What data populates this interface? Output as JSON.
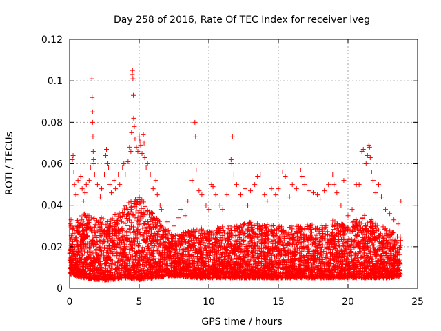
{
  "chart_data": {
    "type": "scatter",
    "title": "Day 258 of 2016, Rate Of TEC Index for receiver lveg",
    "xlabel": "GPS time / hours",
    "ylabel": "ROTI / TECUs",
    "xlim": [
      0,
      25
    ],
    "ylim": [
      0,
      0.12
    ],
    "x_ticks": [
      0,
      5,
      10,
      15,
      20,
      25
    ],
    "x_tick_labels": [
      "0",
      "5",
      "10",
      "15",
      "20",
      "25"
    ],
    "y_ticks": [
      0,
      0.02,
      0.04,
      0.06,
      0.08,
      0.1,
      0.12
    ],
    "y_tick_labels": [
      "0",
      "0.02",
      "0.04",
      "0.06",
      "0.08",
      "0.1",
      "0.12"
    ],
    "grid": true,
    "marker": "plus",
    "color": "#ff0000",
    "series": [
      {
        "name": "ROTI",
        "points": [
          [
            0.05,
            0.031
          ],
          [
            0.1,
            0.033
          ],
          [
            0.2,
            0.062
          ],
          [
            0.25,
            0.064
          ],
          [
            0.3,
            0.056
          ],
          [
            0.35,
            0.05
          ],
          [
            0.45,
            0.045
          ],
          [
            0.6,
            0.052
          ],
          [
            0.8,
            0.054
          ],
          [
            0.9,
            0.048
          ],
          [
            1.0,
            0.042
          ],
          [
            1.1,
            0.046
          ],
          [
            1.2,
            0.05
          ],
          [
            1.4,
            0.052
          ],
          [
            1.5,
            0.058
          ],
          [
            1.6,
            0.101
          ],
          [
            1.62,
            0.092
          ],
          [
            1.65,
            0.085
          ],
          [
            1.65,
            0.08
          ],
          [
            1.68,
            0.073
          ],
          [
            1.7,
            0.066
          ],
          [
            1.72,
            0.062
          ],
          [
            1.75,
            0.06
          ],
          [
            1.8,
            0.055
          ],
          [
            2.0,
            0.05
          ],
          [
            2.2,
            0.044
          ],
          [
            2.3,
            0.048
          ],
          [
            2.5,
            0.055
          ],
          [
            2.6,
            0.064
          ],
          [
            2.65,
            0.067
          ],
          [
            2.75,
            0.06
          ],
          [
            2.8,
            0.058
          ],
          [
            2.9,
            0.05
          ],
          [
            3.0,
            0.046
          ],
          [
            3.2,
            0.052
          ],
          [
            3.3,
            0.048
          ],
          [
            3.5,
            0.055
          ],
          [
            3.6,
            0.05
          ],
          [
            3.8,
            0.058
          ],
          [
            3.9,
            0.06
          ],
          [
            4.0,
            0.055
          ],
          [
            4.2,
            0.061
          ],
          [
            4.3,
            0.068
          ],
          [
            4.4,
            0.066
          ],
          [
            4.45,
            0.075
          ],
          [
            4.5,
            0.103
          ],
          [
            4.52,
            0.105
          ],
          [
            4.55,
            0.101
          ],
          [
            4.58,
            0.093
          ],
          [
            4.6,
            0.082
          ],
          [
            4.65,
            0.078
          ],
          [
            4.7,
            0.072
          ],
          [
            4.8,
            0.068
          ],
          [
            4.9,
            0.066
          ],
          [
            5.0,
            0.073
          ],
          [
            5.05,
            0.071
          ],
          [
            5.1,
            0.069
          ],
          [
            5.2,
            0.065
          ],
          [
            5.3,
            0.074
          ],
          [
            5.35,
            0.07
          ],
          [
            5.4,
            0.063
          ],
          [
            5.5,
            0.058
          ],
          [
            5.6,
            0.06
          ],
          [
            5.8,
            0.055
          ],
          [
            6.0,
            0.048
          ],
          [
            6.2,
            0.052
          ],
          [
            6.3,
            0.045
          ],
          [
            6.5,
            0.04
          ],
          [
            6.6,
            0.038
          ],
          [
            7.0,
            0.032
          ],
          [
            7.5,
            0.03
          ],
          [
            7.8,
            0.034
          ],
          [
            8.0,
            0.038
          ],
          [
            8.3,
            0.035
          ],
          [
            8.5,
            0.042
          ],
          [
            8.8,
            0.052
          ],
          [
            9.0,
            0.08
          ],
          [
            9.05,
            0.073
          ],
          [
            9.1,
            0.057
          ],
          [
            9.3,
            0.047
          ],
          [
            9.5,
            0.045
          ],
          [
            9.8,
            0.04
          ],
          [
            10.0,
            0.038
          ],
          [
            10.2,
            0.05
          ],
          [
            10.3,
            0.049
          ],
          [
            10.5,
            0.045
          ],
          [
            10.8,
            0.04
          ],
          [
            11.0,
            0.038
          ],
          [
            11.3,
            0.045
          ],
          [
            11.6,
            0.062
          ],
          [
            11.65,
            0.06
          ],
          [
            11.7,
            0.073
          ],
          [
            11.8,
            0.055
          ],
          [
            12.0,
            0.05
          ],
          [
            12.3,
            0.045
          ],
          [
            12.6,
            0.048
          ],
          [
            12.8,
            0.04
          ],
          [
            13.0,
            0.047
          ],
          [
            13.3,
            0.05
          ],
          [
            13.5,
            0.054
          ],
          [
            13.7,
            0.055
          ],
          [
            14.0,
            0.045
          ],
          [
            14.2,
            0.042
          ],
          [
            14.5,
            0.048
          ],
          [
            14.8,
            0.045
          ],
          [
            15.0,
            0.048
          ],
          [
            15.3,
            0.056
          ],
          [
            15.5,
            0.054
          ],
          [
            15.8,
            0.044
          ],
          [
            16.0,
            0.05
          ],
          [
            16.3,
            0.048
          ],
          [
            16.6,
            0.057
          ],
          [
            16.7,
            0.054
          ],
          [
            16.9,
            0.05
          ],
          [
            17.2,
            0.047
          ],
          [
            17.5,
            0.046
          ],
          [
            17.8,
            0.045
          ],
          [
            18.0,
            0.043
          ],
          [
            18.3,
            0.047
          ],
          [
            18.6,
            0.05
          ],
          [
            18.9,
            0.055
          ],
          [
            19.0,
            0.05
          ],
          [
            19.2,
            0.046
          ],
          [
            19.5,
            0.04
          ],
          [
            19.7,
            0.052
          ],
          [
            20.0,
            0.035
          ],
          [
            20.3,
            0.038
          ],
          [
            20.6,
            0.05
          ],
          [
            20.8,
            0.05
          ],
          [
            21.0,
            0.066
          ],
          [
            21.1,
            0.067
          ],
          [
            21.3,
            0.06
          ],
          [
            21.4,
            0.064
          ],
          [
            21.5,
            0.069
          ],
          [
            21.55,
            0.068
          ],
          [
            21.6,
            0.063
          ],
          [
            21.7,
            0.056
          ],
          [
            21.8,
            0.052
          ],
          [
            22.0,
            0.046
          ],
          [
            22.2,
            0.05
          ],
          [
            22.4,
            0.044
          ],
          [
            22.7,
            0.038
          ],
          [
            23.0,
            0.036
          ],
          [
            23.3,
            0.033
          ],
          [
            23.6,
            0.031
          ],
          [
            23.8,
            0.042
          ]
        ]
      }
    ],
    "density_envelope": {
      "x": [
        0,
        1,
        2,
        3,
        4,
        5,
        6,
        7,
        8,
        9,
        10,
        11,
        12,
        13,
        14,
        15,
        16,
        17,
        18,
        19,
        20,
        21,
        22,
        23,
        23.8
      ],
      "upper": [
        0.03,
        0.036,
        0.035,
        0.034,
        0.04,
        0.045,
        0.036,
        0.028,
        0.026,
        0.03,
        0.028,
        0.03,
        0.03,
        0.032,
        0.031,
        0.03,
        0.03,
        0.031,
        0.03,
        0.033,
        0.03,
        0.036,
        0.032,
        0.028,
        0.025
      ],
      "lower": [
        0.007,
        0.005,
        0.004,
        0.004,
        0.005,
        0.004,
        0.005,
        0.006,
        0.006,
        0.005,
        0.005,
        0.005,
        0.005,
        0.005,
        0.005,
        0.005,
        0.005,
        0.005,
        0.005,
        0.005,
        0.005,
        0.005,
        0.005,
        0.005,
        0.006
      ]
    }
  }
}
